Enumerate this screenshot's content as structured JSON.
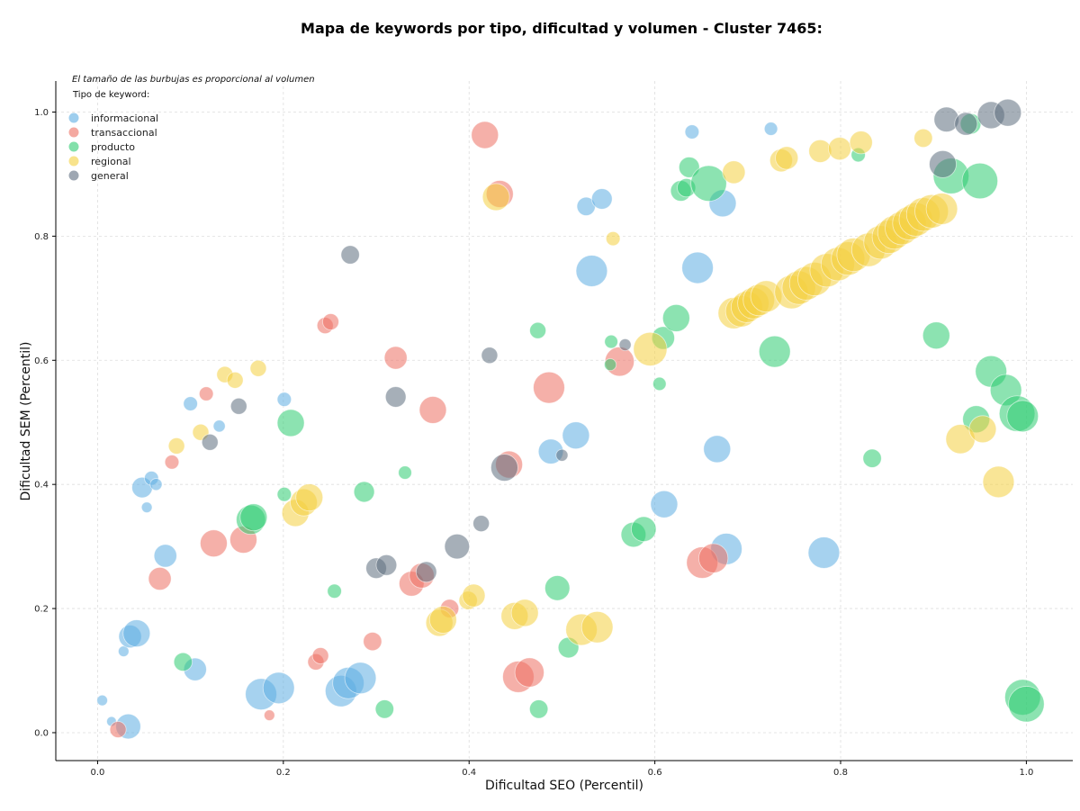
{
  "chart_data": {
    "type": "scatter",
    "title": "Mapa de keywords por tipo, dificultad y volumen - Cluster 7465:",
    "xlabel": "Dificultad SEO (Percentil)",
    "ylabel": "Dificultad SEM (Percentil)",
    "annotation": "El tamaño de las burbujas es proporcional al volumen",
    "legend_title": "Tipo de keyword:",
    "legend_position": "top-left",
    "xlim": [
      -0.045,
      1.05
    ],
    "ylim": [
      -0.045,
      1.05
    ],
    "xticks": [
      "0.0",
      "0.2",
      "0.4",
      "0.6",
      "0.8",
      "1.0"
    ],
    "yticks": [
      "0.0",
      "0.2",
      "0.4",
      "0.6",
      "0.8",
      "1.0"
    ],
    "grid": true,
    "series": [
      {
        "name": "informacional",
        "color": "#5DADE2",
        "points": [
          {
            "x": 0.005,
            "y": 0.052,
            "volume": 1.2
          },
          {
            "x": 0.015,
            "y": 0.018,
            "volume": 1
          },
          {
            "x": 0.033,
            "y": 0.01,
            "volume": 4.5
          },
          {
            "x": 0.028,
            "y": 0.131,
            "volume": 1.2
          },
          {
            "x": 0.035,
            "y": 0.155,
            "volume": 4
          },
          {
            "x": 0.042,
            "y": 0.16,
            "volume": 5
          },
          {
            "x": 0.048,
            "y": 0.395,
            "volume": 3.5
          },
          {
            "x": 0.058,
            "y": 0.41,
            "volume": 2
          },
          {
            "x": 0.063,
            "y": 0.4,
            "volume": 1.5
          },
          {
            "x": 0.053,
            "y": 0.363,
            "volume": 1.2
          },
          {
            "x": 0.073,
            "y": 0.285,
            "volume": 4
          },
          {
            "x": 0.1,
            "y": 0.53,
            "volume": 2
          },
          {
            "x": 0.105,
            "y": 0.102,
            "volume": 4
          },
          {
            "x": 0.131,
            "y": 0.494,
            "volume": 1.5
          },
          {
            "x": 0.176,
            "y": 0.062,
            "volume": 6
          },
          {
            "x": 0.195,
            "y": 0.072,
            "volume": 6
          },
          {
            "x": 0.201,
            "y": 0.537,
            "volume": 2
          },
          {
            "x": 0.262,
            "y": 0.067,
            "volume": 6
          },
          {
            "x": 0.27,
            "y": 0.08,
            "volume": 6
          },
          {
            "x": 0.283,
            "y": 0.088,
            "volume": 6
          },
          {
            "x": 0.488,
            "y": 0.453,
            "volume": 4.5
          },
          {
            "x": 0.515,
            "y": 0.479,
            "volume": 5
          },
          {
            "x": 0.526,
            "y": 0.848,
            "volume": 3
          },
          {
            "x": 0.532,
            "y": 0.744,
            "volume": 6
          },
          {
            "x": 0.543,
            "y": 0.86,
            "volume": 3.5
          },
          {
            "x": 0.61,
            "y": 0.368,
            "volume": 5
          },
          {
            "x": 0.64,
            "y": 0.968,
            "volume": 2
          },
          {
            "x": 0.646,
            "y": 0.749,
            "volume": 6
          },
          {
            "x": 0.667,
            "y": 0.457,
            "volume": 5
          },
          {
            "x": 0.673,
            "y": 0.853,
            "volume": 5
          },
          {
            "x": 0.677,
            "y": 0.296,
            "volume": 6
          },
          {
            "x": 0.725,
            "y": 0.973,
            "volume": 1.8
          },
          {
            "x": 0.782,
            "y": 0.29,
            "volume": 6
          }
        ]
      },
      {
        "name": "transaccional",
        "color": "#EC7063",
        "points": [
          {
            "x": 0.022,
            "y": 0.005,
            "volume": 2.5
          },
          {
            "x": 0.067,
            "y": 0.248,
            "volume": 4
          },
          {
            "x": 0.08,
            "y": 0.436,
            "volume": 2
          },
          {
            "x": 0.117,
            "y": 0.546,
            "volume": 2
          },
          {
            "x": 0.125,
            "y": 0.305,
            "volume": 5
          },
          {
            "x": 0.157,
            "y": 0.311,
            "volume": 5
          },
          {
            "x": 0.185,
            "y": 0.028,
            "volume": 1.2
          },
          {
            "x": 0.235,
            "y": 0.114,
            "volume": 2.5
          },
          {
            "x": 0.24,
            "y": 0.124,
            "volume": 2.5
          },
          {
            "x": 0.245,
            "y": 0.656,
            "volume": 2.5
          },
          {
            "x": 0.251,
            "y": 0.662,
            "volume": 2.5
          },
          {
            "x": 0.296,
            "y": 0.147,
            "volume": 3
          },
          {
            "x": 0.321,
            "y": 0.604,
            "volume": 4
          },
          {
            "x": 0.338,
            "y": 0.24,
            "volume": 4.5
          },
          {
            "x": 0.349,
            "y": 0.253,
            "volume": 4.5
          },
          {
            "x": 0.361,
            "y": 0.52,
            "volume": 5
          },
          {
            "x": 0.379,
            "y": 0.2,
            "volume": 3
          },
          {
            "x": 0.417,
            "y": 0.963,
            "volume": 5
          },
          {
            "x": 0.433,
            "y": 0.868,
            "volume": 5
          },
          {
            "x": 0.443,
            "y": 0.432,
            "volume": 5
          },
          {
            "x": 0.453,
            "y": 0.09,
            "volume": 6
          },
          {
            "x": 0.465,
            "y": 0.097,
            "volume": 5.5
          },
          {
            "x": 0.486,
            "y": 0.556,
            "volume": 6
          },
          {
            "x": 0.562,
            "y": 0.598,
            "volume": 5.5
          },
          {
            "x": 0.651,
            "y": 0.274,
            "volume": 6
          },
          {
            "x": 0.663,
            "y": 0.281,
            "volume": 5.5
          }
        ]
      },
      {
        "name": "producto",
        "color": "#2ECC71",
        "points": [
          {
            "x": 0.092,
            "y": 0.114,
            "volume": 3
          },
          {
            "x": 0.165,
            "y": 0.343,
            "volume": 5.5
          },
          {
            "x": 0.168,
            "y": 0.347,
            "volume": 5
          },
          {
            "x": 0.201,
            "y": 0.384,
            "volume": 2
          },
          {
            "x": 0.208,
            "y": 0.499,
            "volume": 5
          },
          {
            "x": 0.255,
            "y": 0.228,
            "volume": 2
          },
          {
            "x": 0.287,
            "y": 0.388,
            "volume": 3.5
          },
          {
            "x": 0.309,
            "y": 0.038,
            "volume": 3
          },
          {
            "x": 0.331,
            "y": 0.419,
            "volume": 1.8
          },
          {
            "x": 0.474,
            "y": 0.648,
            "volume": 2.5
          },
          {
            "x": 0.475,
            "y": 0.038,
            "volume": 3
          },
          {
            "x": 0.495,
            "y": 0.233,
            "volume": 4.5
          },
          {
            "x": 0.507,
            "y": 0.137,
            "volume": 3.5
          },
          {
            "x": 0.552,
            "y": 0.593,
            "volume": 1.5
          },
          {
            "x": 0.553,
            "y": 0.63,
            "volume": 1.8
          },
          {
            "x": 0.577,
            "y": 0.319,
            "volume": 4.5
          },
          {
            "x": 0.588,
            "y": 0.328,
            "volume": 4.5
          },
          {
            "x": 0.605,
            "y": 0.562,
            "volume": 1.8
          },
          {
            "x": 0.609,
            "y": 0.636,
            "volume": 4
          },
          {
            "x": 0.623,
            "y": 0.668,
            "volume": 5
          },
          {
            "x": 0.628,
            "y": 0.873,
            "volume": 3.5
          },
          {
            "x": 0.634,
            "y": 0.878,
            "volume": 3
          },
          {
            "x": 0.637,
            "y": 0.911,
            "volume": 3.5
          },
          {
            "x": 0.658,
            "y": 0.885,
            "volume": 7
          },
          {
            "x": 0.729,
            "y": 0.614,
            "volume": 6
          },
          {
            "x": 0.819,
            "y": 0.931,
            "volume": 2
          },
          {
            "x": 0.834,
            "y": 0.442,
            "volume": 3
          },
          {
            "x": 0.903,
            "y": 0.64,
            "volume": 5
          },
          {
            "x": 0.919,
            "y": 0.897,
            "volume": 7
          },
          {
            "x": 0.94,
            "y": 0.981,
            "volume": 3.5
          },
          {
            "x": 0.946,
            "y": 0.505,
            "volume": 5
          },
          {
            "x": 0.95,
            "y": 0.889,
            "volume": 7
          },
          {
            "x": 0.962,
            "y": 0.582,
            "volume": 6
          },
          {
            "x": 0.978,
            "y": 0.552,
            "volume": 6
          },
          {
            "x": 0.99,
            "y": 0.514,
            "volume": 7
          },
          {
            "x": 0.996,
            "y": 0.51,
            "volume": 6
          },
          {
            "x": 0.996,
            "y": 0.057,
            "volume": 7
          },
          {
            "x": 1.0,
            "y": 0.046,
            "volume": 7
          }
        ]
      },
      {
        "name": "regional",
        "color": "#F4D03F",
        "points": [
          {
            "x": 0.085,
            "y": 0.462,
            "volume": 2.5
          },
          {
            "x": 0.111,
            "y": 0.484,
            "volume": 2.5
          },
          {
            "x": 0.137,
            "y": 0.577,
            "volume": 2.5
          },
          {
            "x": 0.148,
            "y": 0.568,
            "volume": 2.5
          },
          {
            "x": 0.173,
            "y": 0.587,
            "volume": 2.5
          },
          {
            "x": 0.213,
            "y": 0.354,
            "volume": 5
          },
          {
            "x": 0.222,
            "y": 0.371,
            "volume": 5
          },
          {
            "x": 0.228,
            "y": 0.379,
            "volume": 5
          },
          {
            "x": 0.368,
            "y": 0.177,
            "volume": 5
          },
          {
            "x": 0.372,
            "y": 0.182,
            "volume": 5
          },
          {
            "x": 0.399,
            "y": 0.213,
            "volume": 3
          },
          {
            "x": 0.405,
            "y": 0.221,
            "volume": 4
          },
          {
            "x": 0.429,
            "y": 0.863,
            "volume": 5
          },
          {
            "x": 0.449,
            "y": 0.188,
            "volume": 5
          },
          {
            "x": 0.46,
            "y": 0.193,
            "volume": 5
          },
          {
            "x": 0.521,
            "y": 0.166,
            "volume": 6
          },
          {
            "x": 0.538,
            "y": 0.17,
            "volume": 6
          },
          {
            "x": 0.555,
            "y": 0.796,
            "volume": 2
          },
          {
            "x": 0.595,
            "y": 0.618,
            "volume": 6.5
          },
          {
            "x": 0.685,
            "y": 0.903,
            "volume": 4
          },
          {
            "x": 0.685,
            "y": 0.676,
            "volume": 6
          },
          {
            "x": 0.693,
            "y": 0.679,
            "volume": 6
          },
          {
            "x": 0.699,
            "y": 0.686,
            "volume": 6
          },
          {
            "x": 0.706,
            "y": 0.692,
            "volume": 6
          },
          {
            "x": 0.712,
            "y": 0.697,
            "volume": 6
          },
          {
            "x": 0.72,
            "y": 0.703,
            "volume": 6
          },
          {
            "x": 0.736,
            "y": 0.922,
            "volume": 4
          },
          {
            "x": 0.742,
            "y": 0.926,
            "volume": 4
          },
          {
            "x": 0.747,
            "y": 0.71,
            "volume": 6.5
          },
          {
            "x": 0.755,
            "y": 0.717,
            "volume": 6.5
          },
          {
            "x": 0.763,
            "y": 0.724,
            "volume": 6.5
          },
          {
            "x": 0.772,
            "y": 0.731,
            "volume": 6.5
          },
          {
            "x": 0.778,
            "y": 0.937,
            "volume": 4
          },
          {
            "x": 0.785,
            "y": 0.745,
            "volume": 6.5
          },
          {
            "x": 0.797,
            "y": 0.755,
            "volume": 6.5
          },
          {
            "x": 0.808,
            "y": 0.764,
            "volume": 6.5
          },
          {
            "x": 0.814,
            "y": 0.77,
            "volume": 6.5
          },
          {
            "x": 0.799,
            "y": 0.941,
            "volume": 4
          },
          {
            "x": 0.822,
            "y": 0.951,
            "volume": 4
          },
          {
            "x": 0.83,
            "y": 0.778,
            "volume": 6.5
          },
          {
            "x": 0.843,
            "y": 0.79,
            "volume": 6.5
          },
          {
            "x": 0.852,
            "y": 0.799,
            "volume": 6.5
          },
          {
            "x": 0.858,
            "y": 0.806,
            "volume": 6.5
          },
          {
            "x": 0.866,
            "y": 0.813,
            "volume": 6.5
          },
          {
            "x": 0.874,
            "y": 0.821,
            "volume": 6.5
          },
          {
            "x": 0.881,
            "y": 0.827,
            "volume": 6.5
          },
          {
            "x": 0.889,
            "y": 0.835,
            "volume": 6.5
          },
          {
            "x": 0.898,
            "y": 0.84,
            "volume": 6.5
          },
          {
            "x": 0.909,
            "y": 0.844,
            "volume": 6
          },
          {
            "x": 0.889,
            "y": 0.958,
            "volume": 3
          },
          {
            "x": 0.929,
            "y": 0.473,
            "volume": 5.5
          },
          {
            "x": 0.953,
            "y": 0.489,
            "volume": 5
          },
          {
            "x": 0.97,
            "y": 0.404,
            "volume": 6
          }
        ]
      },
      {
        "name": "general",
        "color": "#5D6D7E",
        "points": [
          {
            "x": 0.121,
            "y": 0.468,
            "volume": 2.5
          },
          {
            "x": 0.152,
            "y": 0.526,
            "volume": 2.5
          },
          {
            "x": 0.272,
            "y": 0.77,
            "volume": 3
          },
          {
            "x": 0.3,
            "y": 0.265,
            "volume": 3.5
          },
          {
            "x": 0.311,
            "y": 0.27,
            "volume": 3.5
          },
          {
            "x": 0.321,
            "y": 0.541,
            "volume": 3.5
          },
          {
            "x": 0.354,
            "y": 0.259,
            "volume": 3.5
          },
          {
            "x": 0.387,
            "y": 0.3,
            "volume": 4.5
          },
          {
            "x": 0.413,
            "y": 0.337,
            "volume": 2.5
          },
          {
            "x": 0.422,
            "y": 0.608,
            "volume": 2.5
          },
          {
            "x": 0.438,
            "y": 0.427,
            "volume": 5
          },
          {
            "x": 0.5,
            "y": 0.447,
            "volume": 1.5
          },
          {
            "x": 0.568,
            "y": 0.625,
            "volume": 1.5
          },
          {
            "x": 0.91,
            "y": 0.916,
            "volume": 5
          },
          {
            "x": 0.914,
            "y": 0.988,
            "volume": 4.5
          },
          {
            "x": 0.935,
            "y": 0.981,
            "volume": 4
          },
          {
            "x": 0.962,
            "y": 0.995,
            "volume": 5
          },
          {
            "x": 0.98,
            "y": 0.999,
            "volume": 5
          }
        ]
      }
    ]
  }
}
